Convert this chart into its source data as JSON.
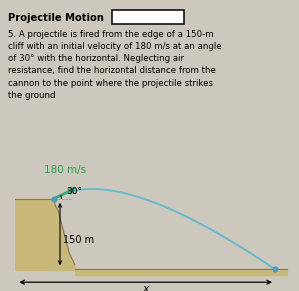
{
  "bg_color": "#cdc8be",
  "title_text": "Projectile Motion",
  "problem_text": "5. A projectile is fired from the edge of a 150-m\ncliff with an initial velocity of 180 m/s at an angle\nof 30° with the horizontal. Neglecting air\nresistance, find the horizontal distance from the\ncannon to the point where the projectile strikes\nthe ground",
  "diagram_label_velocity": "180 m/s",
  "diagram_label_angle": "30°",
  "diagram_label_height": "150 m",
  "diagram_label_x": "x",
  "cliff_top_color": "#c8b97a",
  "cliff_face_color": "#b8a86a",
  "cliff_edge_color": "#887755",
  "trajectory_color": "#66bbcc",
  "arrow_color": "#33aa77",
  "dot_color": "#5599bb",
  "text_color_green": "#339944",
  "text_color_black": "#222222",
  "box_color": "#ffffff",
  "ground_top_color": "#c8b97a",
  "ground_line_color": "#887755"
}
